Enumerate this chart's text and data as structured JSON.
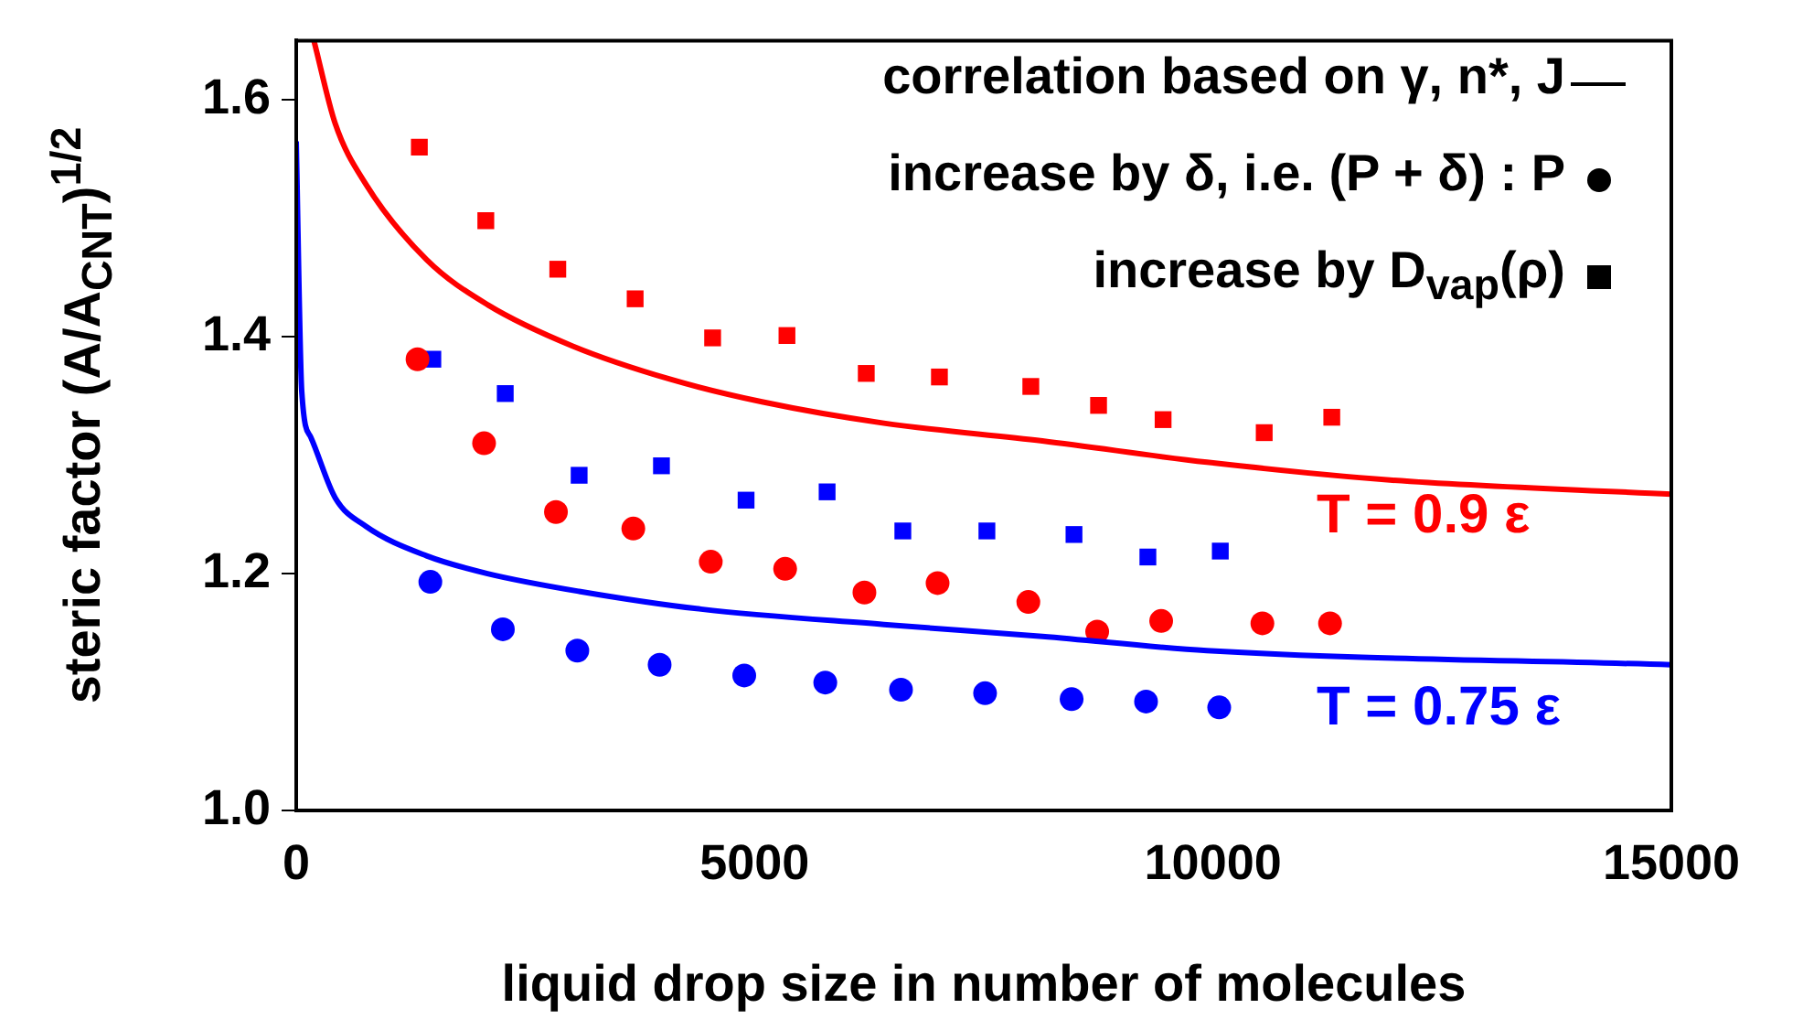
{
  "chart_data": {
    "type": "scatter",
    "xlabel": "liquid drop size in number of molecules",
    "ylabel": "steric factor (A/A$_{CNT}$)$^{1/2}$",
    "xlim": [
      0,
      15000
    ],
    "xticks": [
      0,
      5000,
      10000,
      15000
    ],
    "ylim": [
      1,
      1.65
    ],
    "yticks": [
      {
        "value": 1,
        "label": "1.0"
      },
      {
        "value": 1.2,
        "label": "1.2"
      },
      {
        "value": 1.4,
        "label": "1.4"
      },
      {
        "value": 1.6,
        "label": "1.6"
      }
    ],
    "grid": false,
    "series": [
      {
        "type": "line",
        "color": "#ff0000",
        "marker": "none",
        "x": [
          193,
          425,
          758,
          1422,
          2087,
          3018,
          4083,
          5080,
          6410,
          8139,
          9934,
          11929,
          15000
        ],
        "values": [
          1.65,
          1.58,
          1.529,
          1.465,
          1.427,
          1.392,
          1.364,
          1.345,
          1.327,
          1.312,
          1.294,
          1.279,
          1.267
        ]
      },
      {
        "type": "line",
        "color": "#0000ff",
        "marker": "none",
        "x": [
          0,
          60,
          160,
          425,
          758,
          1422,
          2087,
          3086,
          4415,
          6410,
          8139,
          9934,
          15000
        ],
        "values": [
          1.565,
          1.354,
          1.315,
          1.264,
          1.24,
          1.215,
          1.2,
          1.185,
          1.17,
          1.157,
          1.147,
          1.135,
          1.123
        ]
      },
      {
        "type": "scatter",
        "color": "#ff0000",
        "marker": "circle",
        "x": [
          1323,
          2049,
          2833,
          3677,
          4522,
          5333,
          6198,
          6996,
          7986,
          8737,
          9435,
          10539,
          11277
        ],
        "values": [
          1.381,
          1.31,
          1.252,
          1.238,
          1.21,
          1.204,
          1.184,
          1.192,
          1.176,
          1.151,
          1.16,
          1.158,
          1.158
        ]
      },
      {
        "type": "scatter",
        "color": "#0000ff",
        "marker": "circle",
        "x": [
          1463,
          2254,
          3066,
          3964,
          4887,
          5771,
          6597,
          7514,
          8458,
          9270,
          10068
        ],
        "values": [
          1.193,
          1.153,
          1.135,
          1.123,
          1.114,
          1.108,
          1.102,
          1.099,
          1.094,
          1.092,
          1.087
        ]
      },
      {
        "type": "scatter",
        "color": "#ff0000",
        "marker": "square",
        "x": [
          1343,
          2068,
          2853,
          3697,
          4542,
          5353,
          6218,
          7016,
          8013,
          8752,
          9456,
          10559,
          11296
        ],
        "values": [
          1.56,
          1.498,
          1.457,
          1.432,
          1.399,
          1.401,
          1.369,
          1.366,
          1.358,
          1.342,
          1.33,
          1.319,
          1.332
        ]
      },
      {
        "type": "scatter",
        "color": "#0000ff",
        "marker": "square",
        "x": [
          1490,
          2280,
          3086,
          3984,
          4907,
          5791,
          6617,
          7534,
          8484,
          9290,
          10080
        ],
        "values": [
          1.381,
          1.352,
          1.283,
          1.291,
          1.262,
          1.269,
          1.236,
          1.236,
          1.233,
          1.214,
          1.219
        ]
      }
    ],
    "annotations": [
      "correlation based on γ, n*, J",
      "increase by δ, i.e. (P + δ) : P",
      "increase by D$_{vap}$(ρ)",
      "T = 0.9 ε",
      "T = 0.75 ε"
    ]
  }
}
